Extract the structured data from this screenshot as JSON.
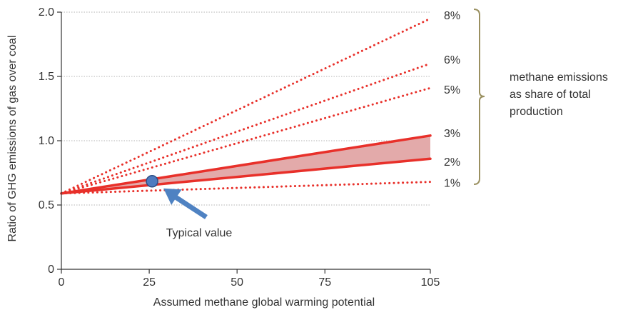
{
  "chart_data": {
    "type": "line",
    "title": "",
    "xlabel": "Assumed methane global warming potential",
    "ylabel": "Ratio of GHG emissions of gas over coal",
    "xlim": [
      0,
      105
    ],
    "ylim": [
      0,
      2.0
    ],
    "x_ticks": [
      "0",
      "25",
      "50",
      "75",
      "105"
    ],
    "x_tick_values": [
      0,
      25,
      50,
      75,
      105
    ],
    "y_ticks": [
      "0",
      "0.5",
      "1.0",
      "1.5",
      "2.0"
    ],
    "y_tick_values": [
      0,
      0.5,
      1.0,
      1.5,
      2.0
    ],
    "grid": "horizontal dotted",
    "series": [
      {
        "name": "8%",
        "style": "dotted",
        "x": [
          0,
          105
        ],
        "y": [
          0.59,
          1.95
        ]
      },
      {
        "name": "6%",
        "style": "dotted",
        "x": [
          0,
          105
        ],
        "y": [
          0.59,
          1.6
        ]
      },
      {
        "name": "5%",
        "style": "dotted",
        "x": [
          0,
          105
        ],
        "y": [
          0.59,
          1.41
        ]
      },
      {
        "name": "3%",
        "style": "solid",
        "x": [
          0,
          105
        ],
        "y": [
          0.59,
          1.04
        ]
      },
      {
        "name": "2%",
        "style": "solid",
        "x": [
          0,
          105
        ],
        "y": [
          0.59,
          0.86
        ]
      },
      {
        "name": "1%",
        "style": "dotted",
        "x": [
          0,
          105
        ],
        "y": [
          0.59,
          0.68
        ]
      }
    ],
    "shaded_band": {
      "between": [
        "2%",
        "3%"
      ],
      "color": "#e3aaaa"
    },
    "annotations": [
      {
        "text": "Typical value",
        "point": {
          "x": 25,
          "y": 0.69
        }
      }
    ],
    "bracket_label": [
      "methane emissions",
      "as share of total",
      "production"
    ],
    "colors": {
      "series": "#e8302a",
      "band": "#e3aaaa",
      "marker": "#4f7cc0",
      "arrow": "#4f82c2",
      "bracket": "#9a9060",
      "axis": "#333333",
      "grid": "#b5b5b5"
    }
  }
}
